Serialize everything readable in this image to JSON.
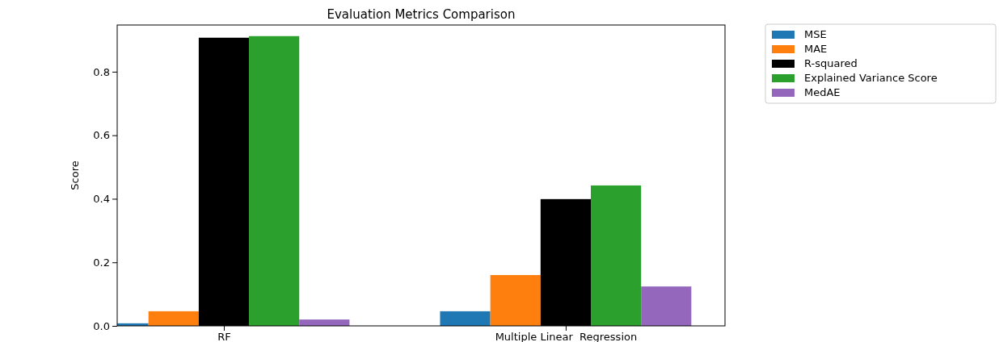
{
  "chart_data": {
    "type": "bar",
    "title": "Evaluation Metrics Comparison",
    "ylabel": "Score",
    "categories": [
      "RF",
      "Multiple Linear  Regression"
    ],
    "series": [
      {
        "name": "MSE",
        "color": "#1f77b4",
        "values": [
          0.008,
          0.046
        ]
      },
      {
        "name": "MAE",
        "color": "#ff7f0e",
        "values": [
          0.046,
          0.16
        ]
      },
      {
        "name": "R-squared",
        "color": "#000000",
        "values": [
          0.907,
          0.399
        ]
      },
      {
        "name": "Explained Variance Score",
        "color": "#2ca02c",
        "values": [
          0.912,
          0.442
        ]
      },
      {
        "name": "MedAE",
        "color": "#9467bd",
        "values": [
          0.02,
          0.124
        ]
      }
    ],
    "ylim": [
      0,
      0.947
    ],
    "yticks": [
      {
        "value": 0,
        "label": "0.0"
      },
      {
        "value": 0.2,
        "label": "0.2"
      },
      {
        "value": 0.4,
        "label": "0.4"
      },
      {
        "value": 0.6,
        "label": "0.6"
      },
      {
        "value": 0.8,
        "label": "0.8"
      }
    ],
    "legend": "top right"
  }
}
